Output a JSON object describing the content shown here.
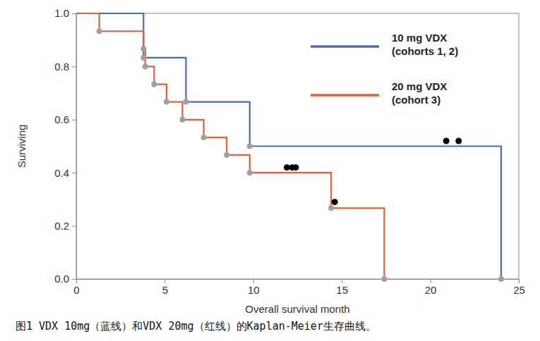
{
  "chart_data": {
    "type": "line",
    "title": "图1 VDX 10mg（蓝线）和VDX 20mg（红线）的Kaplan-Meier生存曲线。",
    "x_label": "Overall survival month",
    "y_label": "Surviving",
    "xlim": [
      0,
      25
    ],
    "ylim": [
      0,
      1
    ],
    "xticks": [
      0,
      5,
      10,
      15,
      20,
      25
    ],
    "yticks": [
      {
        "value": 0,
        "label": "0.0"
      },
      {
        "value": 0.2,
        "label": "0.2"
      },
      {
        "value": 0.4,
        "label": "0.4"
      },
      {
        "value": 0.6,
        "label": "0.6"
      },
      {
        "value": 0.8,
        "label": "0.8"
      },
      {
        "value": 1,
        "label": "1.0"
      }
    ],
    "grid": false,
    "legend": "upper right",
    "series": [
      {
        "name": "10 mg VDX\n(cohorts 1, 2)",
        "color": "#4a6cb0",
        "marker": "circle",
        "x": [
          0,
          3.8,
          6.2,
          9.8,
          24
        ],
        "values": [
          1,
          0.833,
          0.667,
          0.5,
          0
        ],
        "censored": {
          "x": [
            20.9,
            21.6
          ],
          "values": [
            0.52,
            0.52
          ]
        }
      },
      {
        "name": "20 mg VDX\n(cohort 3)",
        "color": "#e0603c",
        "marker": "circle",
        "x": [
          0,
          1.3,
          3.8,
          3.9,
          4.4,
          5.1,
          6.0,
          7.2,
          8.5,
          9.8,
          14.4,
          17.4
        ],
        "values": [
          1,
          0.933,
          0.867,
          0.8,
          0.733,
          0.667,
          0.6,
          0.533,
          0.467,
          0.4,
          0.267,
          0
        ],
        "censored": {
          "x": [
            11.9,
            12.2,
            12.4,
            14.6
          ],
          "values": [
            0.42,
            0.42,
            0.42,
            0.29
          ]
        }
      }
    ]
  }
}
